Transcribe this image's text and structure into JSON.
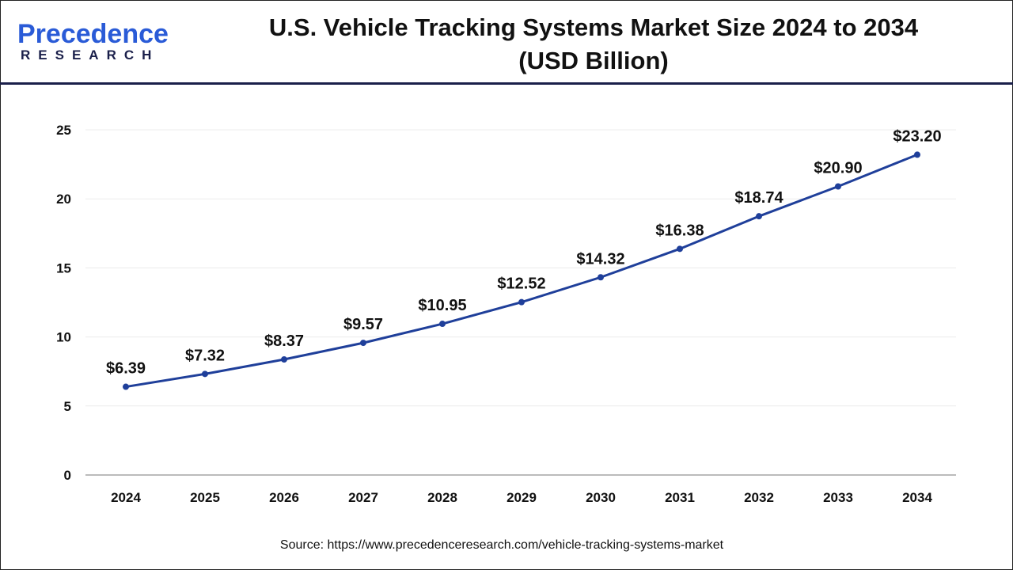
{
  "logo": {
    "text_main": "Precedence",
    "text_sub": "RESEARCH"
  },
  "title_line1": "U.S. Vehicle Tracking Systems Market Size 2024 to 2034",
  "title_line2": "(USD Billion)",
  "source": "Source: https://www.precedenceresearch.com/vehicle-tracking-systems-market",
  "chart_data": {
    "type": "line",
    "title": "U.S. Vehicle Tracking Systems Market Size 2024 to 2034 (USD Billion)",
    "categories": [
      "2024",
      "2025",
      "2026",
      "2027",
      "2028",
      "2029",
      "2030",
      "2031",
      "2032",
      "2033",
      "2034"
    ],
    "values": [
      6.39,
      7.32,
      8.37,
      9.57,
      10.95,
      12.52,
      14.32,
      16.38,
      18.74,
      20.9,
      23.2
    ],
    "data_labels": [
      "$6.39",
      "$7.32",
      "$8.37",
      "$9.57",
      "$10.95",
      "$12.52",
      "$14.32",
      "$16.38",
      "$18.74",
      "$20.90",
      "$23.20"
    ],
    "ylim": [
      0,
      25
    ],
    "yticks": [
      0,
      5,
      10,
      15,
      20,
      25
    ],
    "grid": true,
    "line_color": "#1f3f9a",
    "xlabel": "",
    "ylabel": ""
  }
}
